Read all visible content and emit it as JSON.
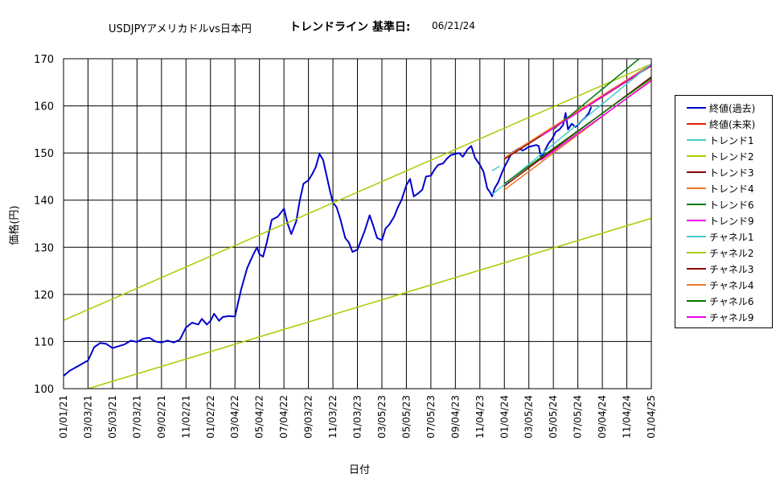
{
  "header": {
    "title": "USDJPYアメリカドルvs日本円",
    "subtitle": "トレンドライン 基準日:",
    "date": "06/21/24"
  },
  "chart_data": {
    "type": "line",
    "xlabel": "日付",
    "ylabel": "価格(円)",
    "ylim": [
      100,
      170
    ],
    "yticks": [
      100,
      110,
      120,
      130,
      140,
      150,
      160,
      170
    ],
    "xticks": [
      "01/01/21",
      "03/03/21",
      "05/03/21",
      "07/03/21",
      "09/02/21",
      "11/02/21",
      "01/02/22",
      "03/04/22",
      "05/04/22",
      "07/04/22",
      "09/03/22",
      "11/03/22",
      "01/03/23",
      "03/05/23",
      "05/05/23",
      "07/05/23",
      "09/04/23",
      "11/04/23",
      "01/04/24",
      "03/05/24",
      "05/05/24",
      "07/05/24",
      "09/04/24",
      "11/04/24",
      "01/04/25"
    ],
    "grid": true,
    "legend_position": "right",
    "series": [
      {
        "name": "終値(過去)",
        "color": "#0000cc",
        "points": [
          [
            0,
            102.7
          ],
          [
            0.5,
            103.8
          ],
          [
            1.2,
            104.8
          ],
          [
            2.0,
            106.0
          ],
          [
            2.5,
            108.8
          ],
          [
            3.0,
            109.7
          ],
          [
            3.5,
            109.5
          ],
          [
            4.0,
            108.6
          ],
          [
            5.0,
            109.4
          ],
          [
            5.5,
            110.2
          ],
          [
            6.0,
            109.9
          ],
          [
            6.5,
            110.6
          ],
          [
            7.0,
            110.8
          ],
          [
            7.5,
            110.0
          ],
          [
            8.0,
            109.8
          ],
          [
            8.5,
            110.2
          ],
          [
            9.0,
            109.8
          ],
          [
            9.5,
            110.4
          ],
          [
            10.0,
            113.0
          ],
          [
            10.5,
            114.0
          ],
          [
            11.0,
            113.6
          ],
          [
            11.3,
            114.8
          ],
          [
            11.7,
            113.6
          ],
          [
            12.0,
            114.4
          ],
          [
            12.3,
            115.9
          ],
          [
            12.7,
            114.4
          ],
          [
            13.0,
            115.2
          ],
          [
            13.5,
            115.4
          ],
          [
            14.0,
            115.3
          ],
          [
            14.5,
            121.0
          ],
          [
            15.0,
            125.6
          ],
          [
            15.5,
            128.5
          ],
          [
            15.8,
            130.0
          ],
          [
            16.0,
            128.5
          ],
          [
            16.3,
            128.0
          ],
          [
            16.6,
            131.0
          ],
          [
            17.0,
            135.8
          ],
          [
            17.5,
            136.5
          ],
          [
            18.0,
            138.2
          ],
          [
            18.3,
            135.0
          ],
          [
            18.6,
            132.8
          ],
          [
            19.0,
            135.5
          ],
          [
            19.3,
            140.0
          ],
          [
            19.6,
            143.5
          ],
          [
            20.0,
            144.2
          ],
          [
            20.3,
            145.5
          ],
          [
            20.6,
            147.0
          ],
          [
            20.9,
            149.8
          ],
          [
            21.2,
            148.5
          ],
          [
            21.5,
            145.0
          ],
          [
            21.8,
            141.5
          ],
          [
            22.0,
            139.5
          ],
          [
            22.3,
            138.5
          ],
          [
            22.6,
            136.0
          ],
          [
            23.0,
            132.0
          ],
          [
            23.3,
            131.0
          ],
          [
            23.6,
            129.0
          ],
          [
            24.0,
            129.5
          ],
          [
            24.3,
            131.5
          ],
          [
            24.6,
            133.5
          ],
          [
            25.0,
            136.8
          ],
          [
            25.3,
            134.5
          ],
          [
            25.6,
            132.0
          ],
          [
            26.0,
            131.5
          ],
          [
            26.3,
            134.0
          ],
          [
            26.6,
            134.8
          ],
          [
            27.0,
            136.5
          ],
          [
            27.3,
            138.5
          ],
          [
            27.6,
            140.0
          ],
          [
            28.0,
            143.2
          ],
          [
            28.3,
            144.5
          ],
          [
            28.6,
            140.8
          ],
          [
            29.0,
            141.5
          ],
          [
            29.3,
            142.2
          ],
          [
            29.6,
            145.0
          ],
          [
            30.0,
            145.2
          ],
          [
            30.3,
            146.5
          ],
          [
            30.6,
            147.5
          ],
          [
            31.0,
            147.8
          ],
          [
            31.3,
            148.8
          ],
          [
            31.6,
            149.5
          ],
          [
            32.0,
            149.8
          ],
          [
            32.3,
            150.0
          ],
          [
            32.6,
            149.2
          ],
          [
            33.0,
            150.8
          ],
          [
            33.3,
            151.5
          ],
          [
            33.6,
            149.0
          ],
          [
            34.0,
            147.5
          ],
          [
            34.3,
            146.0
          ],
          [
            34.6,
            142.5
          ],
          [
            34.8,
            141.8
          ],
          [
            35.0,
            140.8
          ],
          [
            35.2,
            142.5
          ],
          [
            35.5,
            143.8
          ],
          [
            35.8,
            145.8
          ],
          [
            36.0,
            147.0
          ],
          [
            36.3,
            148.5
          ],
          [
            36.6,
            150.0
          ],
          [
            36.9,
            150.5
          ],
          [
            37.2,
            151.0
          ],
          [
            37.5,
            150.5
          ],
          [
            37.8,
            151.0
          ],
          [
            38.0,
            151.3
          ],
          [
            38.3,
            151.5
          ],
          [
            38.6,
            151.7
          ],
          [
            38.8,
            151.5
          ],
          [
            39.0,
            149.0
          ],
          [
            39.3,
            150.5
          ],
          [
            39.6,
            152.0
          ],
          [
            39.9,
            153.0
          ],
          [
            40.2,
            154.5
          ],
          [
            40.5,
            155.0
          ],
          [
            40.8,
            156.0
          ],
          [
            41.0,
            158.5
          ],
          [
            41.2,
            155.0
          ],
          [
            41.5,
            156.2
          ],
          [
            41.8,
            155.5
          ],
          [
            42.0,
            156.0
          ],
          [
            42.3,
            156.8
          ],
          [
            42.6,
            157.5
          ],
          [
            42.9,
            158.5
          ],
          [
            43.1,
            159.8
          ]
        ]
      },
      {
        "name": "終値(未来)",
        "color": "#dd2200",
        "points": []
      },
      {
        "name": "トレンド1",
        "color": "#44cccc",
        "points": [
          [
            35.0,
            146.2
          ],
          [
            35.6,
            147.2
          ]
        ]
      },
      {
        "name": "トレンド2",
        "color": "#aacc00",
        "points": [
          [
            0,
            114.5
          ],
          [
            49.0,
            170.0
          ]
        ]
      },
      {
        "name": "トレンド3",
        "color": "#880000",
        "points": [
          [
            36.0,
            148.7
          ],
          [
            48.9,
            170.0
          ]
        ]
      },
      {
        "name": "トレンド4",
        "color": "#ee7722",
        "points": [
          [
            36.0,
            149.0
          ],
          [
            48.7,
            170.0
          ]
        ]
      },
      {
        "name": "トレンド6",
        "color": "#007700",
        "points": [
          [
            40.0,
            155.0
          ],
          [
            47.0,
            170.0
          ]
        ]
      },
      {
        "name": "トレンド9",
        "color": "#ee00ee",
        "points": [
          [
            39.0,
            153.6
          ],
          [
            48.8,
            170.0
          ]
        ]
      },
      {
        "name": "チャネル1",
        "color": "#44cccc",
        "points": [
          [
            35.0,
            141.2
          ],
          [
            48.5,
            170.0
          ]
        ]
      },
      {
        "name": "チャネル2",
        "color": "#aacc00",
        "points": [
          [
            2.0,
            100.0
          ],
          [
            72.0,
            155.0
          ]
        ]
      },
      {
        "name": "チャネル3",
        "color": "#880000",
        "points": [
          [
            36.0,
            143.0
          ],
          [
            50.0,
            170.0
          ]
        ]
      },
      {
        "name": "チャネル4",
        "color": "#ee7722",
        "points": [
          [
            36.0,
            142.2
          ],
          [
            50.3,
            170.0
          ]
        ]
      },
      {
        "name": "チャネル6",
        "color": "#007700",
        "points": [
          [
            36.0,
            143.5
          ],
          [
            50.2,
            170.0
          ]
        ]
      },
      {
        "name": "チャネル9",
        "color": "#ee00ee",
        "points": [
          [
            39.0,
            148.5
          ],
          [
            50.5,
            170.0
          ]
        ]
      }
    ]
  }
}
